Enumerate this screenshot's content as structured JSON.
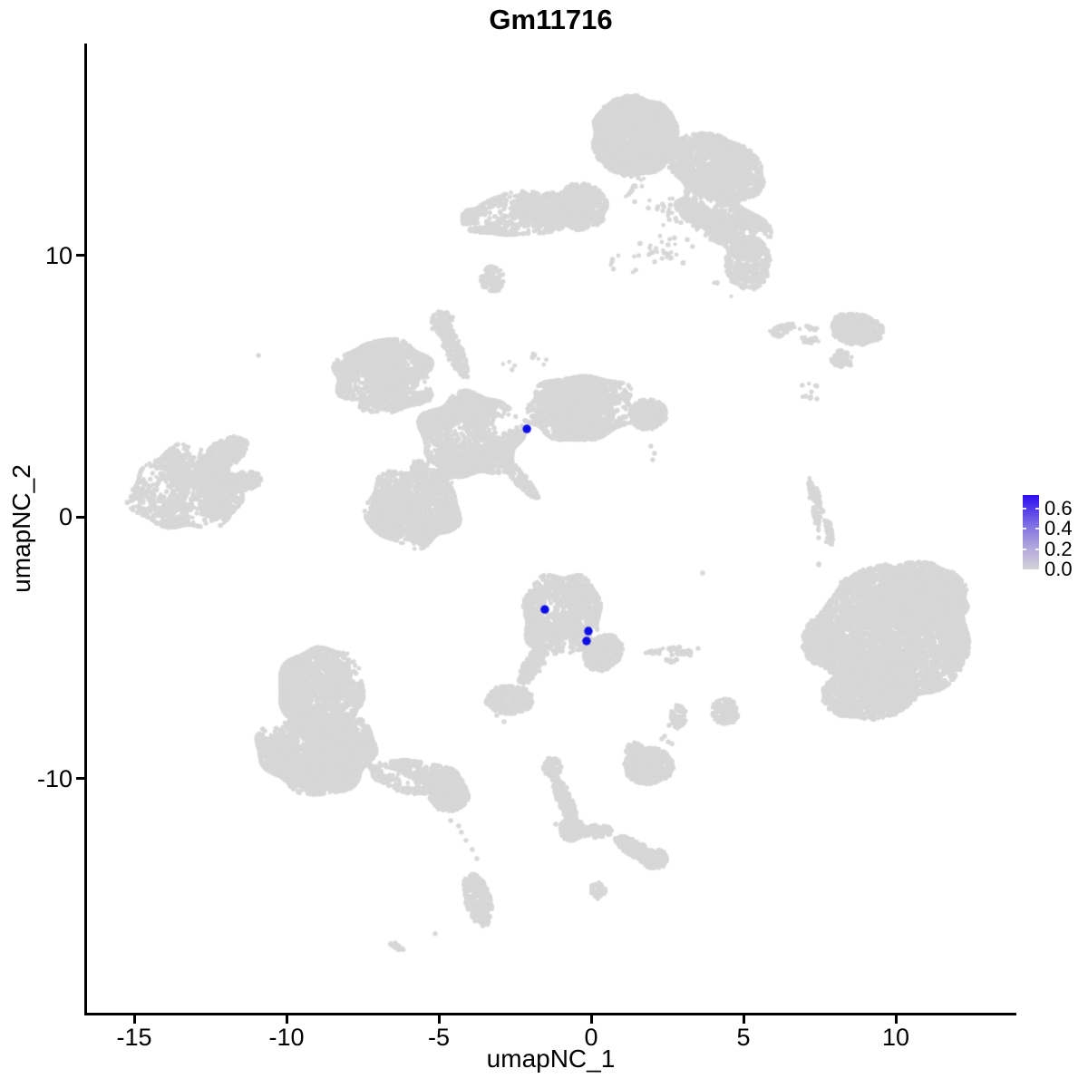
{
  "title": "Gm11716",
  "axes": {
    "x_label": "umapNC_1",
    "y_label": "umapNC_2",
    "x_ticks": [
      {
        "value": -15,
        "label": "-15"
      },
      {
        "value": -10,
        "label": "-10"
      },
      {
        "value": -5,
        "label": "-5"
      },
      {
        "value": 0,
        "label": "0"
      },
      {
        "value": 5,
        "label": "5"
      },
      {
        "value": 10,
        "label": "10"
      }
    ],
    "y_ticks": [
      {
        "value": 10,
        "label": "10"
      },
      {
        "value": 0,
        "label": "0"
      },
      {
        "value": -10,
        "label": "-10"
      }
    ]
  },
  "legend": {
    "tick_labels": [
      "0.6",
      "0.4",
      "0.2",
      "0.0"
    ],
    "tick_values": [
      0.6,
      0.4,
      0.2,
      0.0
    ],
    "gradient_stops_top_to_bottom": [
      "#2b0df2",
      "#7f6fe3",
      "#b3a9dd",
      "#d5d3d7"
    ]
  },
  "colors": {
    "background_cells": "#d7d7d7",
    "highlight_cells": "#0d0de6",
    "axis": "#000000",
    "text": "#000000"
  },
  "chart_data": {
    "type": "scatter",
    "title": "Gm11716",
    "xlabel": "umapNC_1",
    "ylabel": "umapNC_2",
    "xlim": [
      -16.6,
      13.9
    ],
    "ylim": [
      -19.0,
      18.1
    ],
    "x_tick_values": [
      -15,
      -10,
      -5,
      0,
      5,
      10
    ],
    "y_tick_values": [
      10,
      0,
      -10
    ],
    "grid": false,
    "legend_position": "right",
    "colorbar": {
      "min": 0.0,
      "max": 0.73,
      "tick_values": [
        0.0,
        0.2,
        0.4,
        0.6
      ]
    },
    "highlighted_cells": [
      {
        "x": -2.11,
        "y": 3.36,
        "value": 0.7
      },
      {
        "x": -1.52,
        "y": -3.54,
        "value": 0.65
      },
      {
        "x": -0.09,
        "y": -4.37,
        "value": 0.65
      },
      {
        "x": -0.15,
        "y": -4.75,
        "value": 0.65
      }
    ],
    "clusters": [
      {
        "name": "top-head",
        "cx": 1.43,
        "cy": 14.56,
        "rx": 1.43,
        "ry": 1.56,
        "rot": 0,
        "n": 2600,
        "texture": 0
      },
      {
        "name": "top-hook-upper",
        "cx": 4.11,
        "cy": 13.34,
        "rx": 1.7,
        "ry": 1.2,
        "rot": -28,
        "n": 1600,
        "texture": 0
      },
      {
        "name": "top-hook-band",
        "cx": 4.4,
        "cy": 11.27,
        "rx": 1.85,
        "ry": 0.85,
        "rot": -39,
        "n": 1100,
        "texture": 1
      },
      {
        "name": "top-hook-tip",
        "cx": 5.15,
        "cy": 9.71,
        "rx": 0.74,
        "ry": 1.04,
        "rot": 0,
        "n": 450,
        "texture": 0
      },
      {
        "name": "top-left-arm",
        "cx": -2.14,
        "cy": 11.61,
        "rx": 1.9,
        "ry": 0.8,
        "rot": 10,
        "n": 1000,
        "texture": 1
      },
      {
        "name": "top-left-arm-tail",
        "cx": -3.48,
        "cy": 11.33,
        "rx": 0.75,
        "ry": 0.55,
        "rot": 0,
        "n": 240,
        "texture": 1
      },
      {
        "name": "top-arm-join",
        "cx": -0.36,
        "cy": 11.85,
        "rx": 0.9,
        "ry": 0.9,
        "rot": 0,
        "n": 700,
        "texture": 0
      },
      {
        "name": "top-scatter",
        "cx": 2.77,
        "cy": 11.44,
        "rx": 2.1,
        "ry": 1.75,
        "rot": 0,
        "n": 120,
        "texture": 1
      },
      {
        "name": "top-small-blob",
        "cx": -3.24,
        "cy": 9.08,
        "rx": 0.4,
        "ry": 0.5,
        "rot": 0,
        "n": 90,
        "texture": 0
      },
      {
        "name": "top-band-scatter",
        "cx": 4.85,
        "cy": 8.84,
        "rx": 0.9,
        "ry": 0.6,
        "rot": 0,
        "n": 10,
        "texture": 0
      },
      {
        "name": "top-head-scatter",
        "cx": 1.13,
        "cy": 9.71,
        "rx": 0.5,
        "ry": 0.45,
        "rot": 0,
        "n": 8,
        "texture": 0
      },
      {
        "name": "sat-main",
        "cx": 8.72,
        "cy": 7.18,
        "rx": 0.9,
        "ry": 0.6,
        "rot": -10,
        "n": 380,
        "texture": 0
      },
      {
        "name": "sat-tail",
        "cx": 6.79,
        "cy": 7.0,
        "rx": 0.85,
        "ry": 0.36,
        "rot": -5,
        "n": 130,
        "texture": 1
      },
      {
        "name": "sat-comma",
        "cx": 8.21,
        "cy": 6.03,
        "rx": 0.38,
        "ry": 0.33,
        "rot": -35,
        "n": 70,
        "texture": 0
      },
      {
        "name": "sat-dots",
        "cx": 7.17,
        "cy": 4.82,
        "rx": 0.35,
        "ry": 0.33,
        "rot": 0,
        "n": 6,
        "texture": 0
      },
      {
        "name": "spider-left-wing",
        "cx": -6.9,
        "cy": 5.55,
        "rx": 1.55,
        "ry": 1.15,
        "rot": 15,
        "n": 1600,
        "texture": 1
      },
      {
        "name": "spider-left-wing-fill",
        "cx": -6.46,
        "cy": 4.85,
        "rx": 1.3,
        "ry": 0.8,
        "rot": 15,
        "n": 700,
        "texture": 1
      },
      {
        "name": "spider-center",
        "cx": -3.93,
        "cy": 3.12,
        "rx": 1.65,
        "ry": 1.55,
        "rot": 0,
        "n": 2400,
        "texture": 1
      },
      {
        "name": "spider-right-wing",
        "cx": -0.36,
        "cy": 4.16,
        "rx": 1.8,
        "ry": 1.2,
        "rot": 5,
        "n": 2200,
        "texture": 1
      },
      {
        "name": "spider-right-tip",
        "cx": 1.87,
        "cy": 3.92,
        "rx": 0.6,
        "ry": 0.6,
        "rot": 0,
        "n": 350,
        "texture": 0
      },
      {
        "name": "spider-arm",
        "cx": -4.52,
        "cy": 6.41,
        "rx": 0.28,
        "ry": 1.2,
        "rot": 21,
        "n": 220,
        "texture": 0
      },
      {
        "name": "spider-arm-top",
        "cx": -4.88,
        "cy": 7.42,
        "rx": 0.38,
        "ry": 0.45,
        "rot": 0,
        "n": 110,
        "texture": 0
      },
      {
        "name": "spider-lower-lobe",
        "cx": -5.86,
        "cy": 0.35,
        "rx": 1.5,
        "ry": 1.45,
        "rot": 0,
        "n": 2000,
        "texture": 1
      },
      {
        "name": "spider-neck",
        "cx": -5.12,
        "cy": 1.56,
        "rx": 0.9,
        "ry": 0.7,
        "rot": 0,
        "n": 500,
        "texture": 1
      },
      {
        "name": "spider-streak",
        "cx": -2.44,
        "cy": 1.59,
        "rx": 1.15,
        "ry": 0.22,
        "rot": -53,
        "n": 200,
        "texture": 0
      },
      {
        "name": "spider-scatter",
        "cx": -2.14,
        "cy": 5.96,
        "rx": 0.8,
        "ry": 0.5,
        "rot": 0,
        "n": 10,
        "texture": 0
      },
      {
        "name": "left-main",
        "cx": -13.3,
        "cy": 1.04,
        "rx": 1.75,
        "ry": 1.55,
        "rot": 0,
        "n": 1700,
        "texture": 1
      },
      {
        "name": "left-arm",
        "cx": -12.02,
        "cy": 2.43,
        "rx": 0.85,
        "ry": 0.5,
        "rot": 35,
        "n": 300,
        "texture": 0
      },
      {
        "name": "left-beak",
        "cx": -11.67,
        "cy": 1.32,
        "rx": 0.9,
        "ry": 0.4,
        "rot": 10,
        "n": 280,
        "texture": 0
      },
      {
        "name": "right-strip",
        "cx": 7.53,
        "cy": 0.17,
        "rx": 0.27,
        "ry": 1.3,
        "rot": 13,
        "n": 240,
        "texture": 1
      },
      {
        "name": "cb-main",
        "cx": -0.95,
        "cy": -3.74,
        "rx": 1.28,
        "ry": 1.55,
        "rot": 0,
        "n": 1700,
        "texture": 1
      },
      {
        "name": "cb-tip",
        "cx": 0.39,
        "cy": -5.2,
        "rx": 0.58,
        "ry": 0.75,
        "rot": -35,
        "n": 380,
        "texture": 0
      },
      {
        "name": "cb-tail",
        "cx": -1.9,
        "cy": -5.65,
        "rx": 0.3,
        "ry": 0.85,
        "rot": -28,
        "n": 220,
        "texture": 0
      },
      {
        "name": "cb-tail-blob",
        "cx": -2.68,
        "cy": -7.0,
        "rx": 0.78,
        "ry": 0.55,
        "rot": 0,
        "n": 420,
        "texture": 0
      },
      {
        "name": "cb-dash",
        "cx": 2.47,
        "cy": -5.27,
        "rx": 0.8,
        "ry": 0.28,
        "rot": 5,
        "n": 80,
        "texture": 1
      },
      {
        "name": "cb-comma",
        "cx": 2.86,
        "cy": -7.63,
        "rx": 0.27,
        "ry": 0.45,
        "rot": 0,
        "n": 60,
        "texture": 0
      },
      {
        "name": "cb-tri",
        "cx": 4.4,
        "cy": -7.45,
        "rx": 0.45,
        "ry": 0.5,
        "rot": 0,
        "n": 160,
        "texture": 0
      },
      {
        "name": "bigright-core",
        "cx": 9.91,
        "cy": -4.51,
        "rx": 2.55,
        "ry": 2.7,
        "rot": 0,
        "n": 5200,
        "texture": 0
      },
      {
        "name": "bigright-bulge",
        "cx": 10.95,
        "cy": -2.95,
        "rx": 1.5,
        "ry": 1.2,
        "rot": -20,
        "n": 1600,
        "texture": 0
      },
      {
        "name": "bigright-bottom",
        "cx": 9.17,
        "cy": -6.66,
        "rx": 1.6,
        "ry": 1.1,
        "rot": 10,
        "n": 1300,
        "texture": 0
      },
      {
        "name": "bigright-left",
        "cx": 7.53,
        "cy": -4.75,
        "rx": 0.6,
        "ry": 0.95,
        "rot": 0,
        "n": 450,
        "texture": 0
      },
      {
        "name": "botleft-top",
        "cx": -8.84,
        "cy": -6.76,
        "rx": 1.35,
        "ry": 1.8,
        "rot": 0,
        "n": 2600,
        "texture": 1
      },
      {
        "name": "botleft-main",
        "cx": -8.99,
        "cy": -9.01,
        "rx": 1.9,
        "ry": 1.5,
        "rot": 0,
        "n": 3200,
        "texture": 1
      },
      {
        "name": "botleft-tail",
        "cx": -5.65,
        "cy": -9.98,
        "rx": 1.65,
        "ry": 0.6,
        "rot": -12,
        "n": 950,
        "texture": 1
      },
      {
        "name": "botleft-end",
        "cx": -4.67,
        "cy": -10.64,
        "rx": 0.65,
        "ry": 0.62,
        "rot": 0,
        "n": 420,
        "texture": 0
      },
      {
        "name": "botleft-kidney",
        "cx": -3.72,
        "cy": -14.63,
        "rx": 0.42,
        "ry": 1.05,
        "rot": 13,
        "n": 320,
        "texture": 0
      },
      {
        "name": "botleft-dash",
        "cx": -6.37,
        "cy": -16.43,
        "rx": 0.28,
        "ry": 0.12,
        "rot": -35,
        "n": 20,
        "texture": 0
      },
      {
        "name": "stem-knob",
        "cx": -1.28,
        "cy": -9.57,
        "rx": 0.3,
        "ry": 0.38,
        "rot": 0,
        "n": 90,
        "texture": 0
      },
      {
        "name": "stem",
        "cx": -0.86,
        "cy": -10.85,
        "rx": 0.24,
        "ry": 1.0,
        "rot": 20,
        "n": 260,
        "texture": 0
      },
      {
        "name": "stem-junction",
        "cx": -0.65,
        "cy": -11.96,
        "rx": 0.42,
        "ry": 0.45,
        "rot": 0,
        "n": 160,
        "texture": 0
      },
      {
        "name": "stem-arm",
        "cx": 0.15,
        "cy": -12.03,
        "rx": 0.55,
        "ry": 0.25,
        "rot": 0,
        "n": 90,
        "texture": 0
      },
      {
        "name": "stem-band",
        "cx": 1.52,
        "cy": -12.76,
        "rx": 0.9,
        "ry": 0.3,
        "rot": -36,
        "n": 230,
        "texture": 0
      },
      {
        "name": "stem-end",
        "cx": 2.08,
        "cy": -13.07,
        "rx": 0.42,
        "ry": 0.4,
        "rot": 0,
        "n": 150,
        "texture": 0
      },
      {
        "name": "stem-comma",
        "cx": 0.24,
        "cy": -14.28,
        "rx": 0.25,
        "ry": 0.35,
        "rot": 0,
        "n": 45,
        "texture": 0
      },
      {
        "name": "island-main",
        "cx": 1.9,
        "cy": -9.53,
        "rx": 0.82,
        "ry": 0.7,
        "rot": 0,
        "n": 650,
        "texture": 0
      },
      {
        "name": "island-bump",
        "cx": 1.43,
        "cy": -8.91,
        "rx": 0.3,
        "ry": 0.28,
        "rot": 0,
        "n": 80,
        "texture": 0
      }
    ],
    "outlier_points": [
      [
        -10.92,
        6.17
      ],
      [
        1.96,
        2.7
      ],
      [
        2.08,
        2.43
      ],
      [
        2.02,
        2.18
      ],
      [
        7.47,
        -0.8
      ],
      [
        7.47,
        -1.8
      ],
      [
        3.51,
        -5.03
      ],
      [
        3.66,
        -2.15
      ],
      [
        -3.1,
        -7.59
      ],
      [
        -2.86,
        -7.83
      ],
      [
        2.32,
        -8.49
      ],
      [
        2.53,
        -8.6
      ],
      [
        7.47,
        -1.84
      ],
      [
        8.21,
        -2.5
      ],
      [
        8.13,
        -2.88
      ],
      [
        8.57,
        -3.22
      ],
      [
        8.78,
        -2.67
      ],
      [
        8.21,
        -3.54
      ],
      [
        7.74,
        -3.81
      ],
      [
        -4.61,
        -11.61
      ],
      [
        -4.35,
        -11.82
      ],
      [
        -4.26,
        -12.06
      ],
      [
        -4.11,
        -12.37
      ],
      [
        -3.9,
        -12.72
      ],
      [
        -3.75,
        -13.07
      ],
      [
        -5.12,
        -15.94
      ],
      [
        -1.16,
        -11.75
      ],
      [
        2.41,
        -8.39
      ],
      [
        2.65,
        -8.67
      ],
      [
        2.56,
        -7.97
      ],
      [
        2.83,
        -8.08
      ],
      [
        6.93,
        5.03
      ],
      [
        7.23,
        4.78
      ],
      [
        7.41,
        4.51
      ],
      [
        7.05,
        4.61
      ]
    ]
  }
}
